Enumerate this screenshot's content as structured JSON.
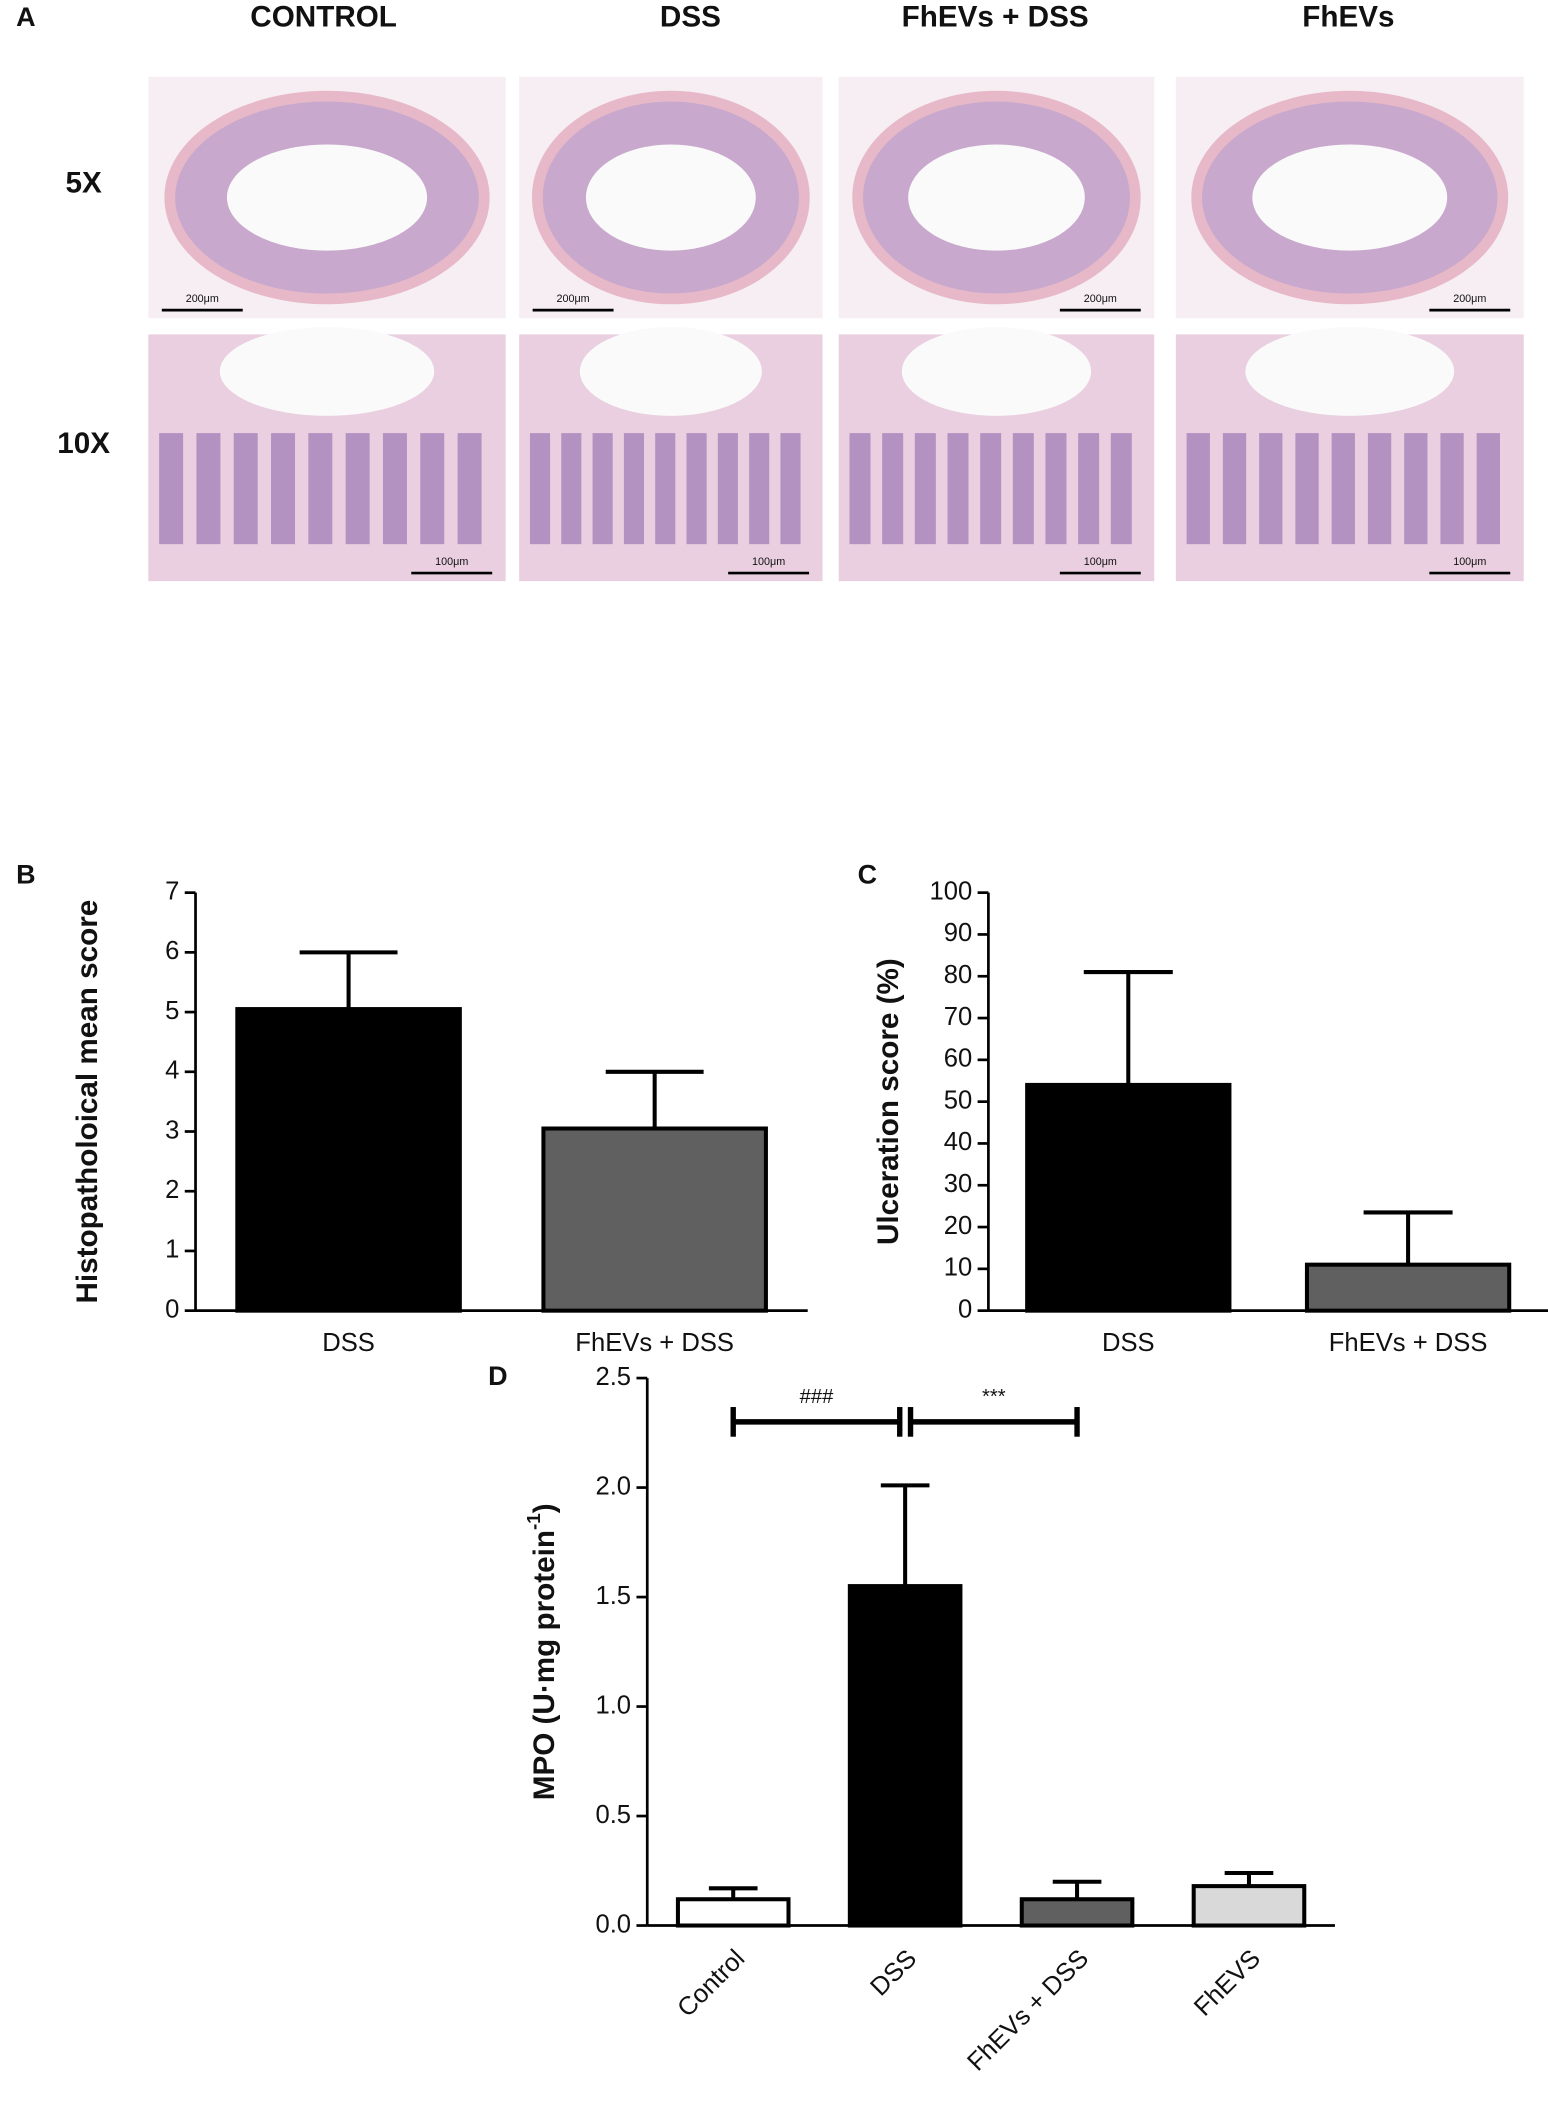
{
  "panel_labels": [
    "A",
    "B",
    "C",
    "D"
  ],
  "panel_a": {
    "columns": [
      "CONTROL",
      "DSS",
      "FhEVs + DSS",
      "FhEVs"
    ],
    "rows": [
      "5X",
      "10X"
    ],
    "scale_bars": [
      [
        "200μm",
        "200μm",
        "200μm",
        "200μm"
      ],
      [
        "100μm",
        "100μm",
        "100μm",
        "100μm"
      ]
    ]
  },
  "chart_data": [
    {
      "type": "bar",
      "ylabel": "Histopatholoical mean score",
      "categories": [
        "DSS",
        "FhEVs + DSS"
      ],
      "values": [
        5.05,
        3.05
      ],
      "errors": [
        0.95,
        0.95
      ],
      "colors": [
        "#000000",
        "#606060"
      ],
      "ylim": [
        0,
        7
      ],
      "yticks": [
        0,
        1,
        2,
        3,
        4,
        5,
        6,
        7
      ]
    },
    {
      "type": "bar",
      "ylabel": "Ulceration score (%)",
      "categories": [
        "DSS",
        "FhEVs +  DSS"
      ],
      "values": [
        54,
        11
      ],
      "errors": [
        27,
        12.5
      ],
      "colors": [
        "#000000",
        "#606060"
      ],
      "ylim": [
        0,
        100
      ],
      "yticks": [
        0,
        10,
        20,
        30,
        40,
        50,
        60,
        70,
        80,
        90,
        100
      ]
    },
    {
      "type": "bar",
      "ylabel": {
        "text": "MPO (U·mg protein",
        "superscript": "-1",
        "suffix": ")"
      },
      "categories": [
        "Control",
        "DSS",
        "FhEVs + DSS",
        "FhEVS"
      ],
      "values": [
        0.12,
        1.55,
        0.12,
        0.18
      ],
      "errors": [
        0.05,
        0.46,
        0.08,
        0.06
      ],
      "colors": [
        "#ffffff",
        "#000000",
        "#606060",
        "#d9d9d9"
      ],
      "ylim": [
        0,
        2.5
      ],
      "yticks": [
        {
          "value": 0,
          "label": "0.0"
        },
        {
          "value": 0.5,
          "label": "0.5"
        },
        {
          "value": 1,
          "label": "1.0"
        },
        {
          "value": 1.5,
          "label": "1.5"
        },
        {
          "value": 2,
          "label": "2.0"
        },
        {
          "value": 2.5,
          "label": "2.5"
        }
      ],
      "rotate_labels": true,
      "annotations": [
        {
          "label": "###",
          "between": [
            0,
            1
          ],
          "y": 2.3
        },
        {
          "label": "***",
          "between": [
            1,
            2
          ],
          "y": 2.3
        }
      ]
    }
  ]
}
